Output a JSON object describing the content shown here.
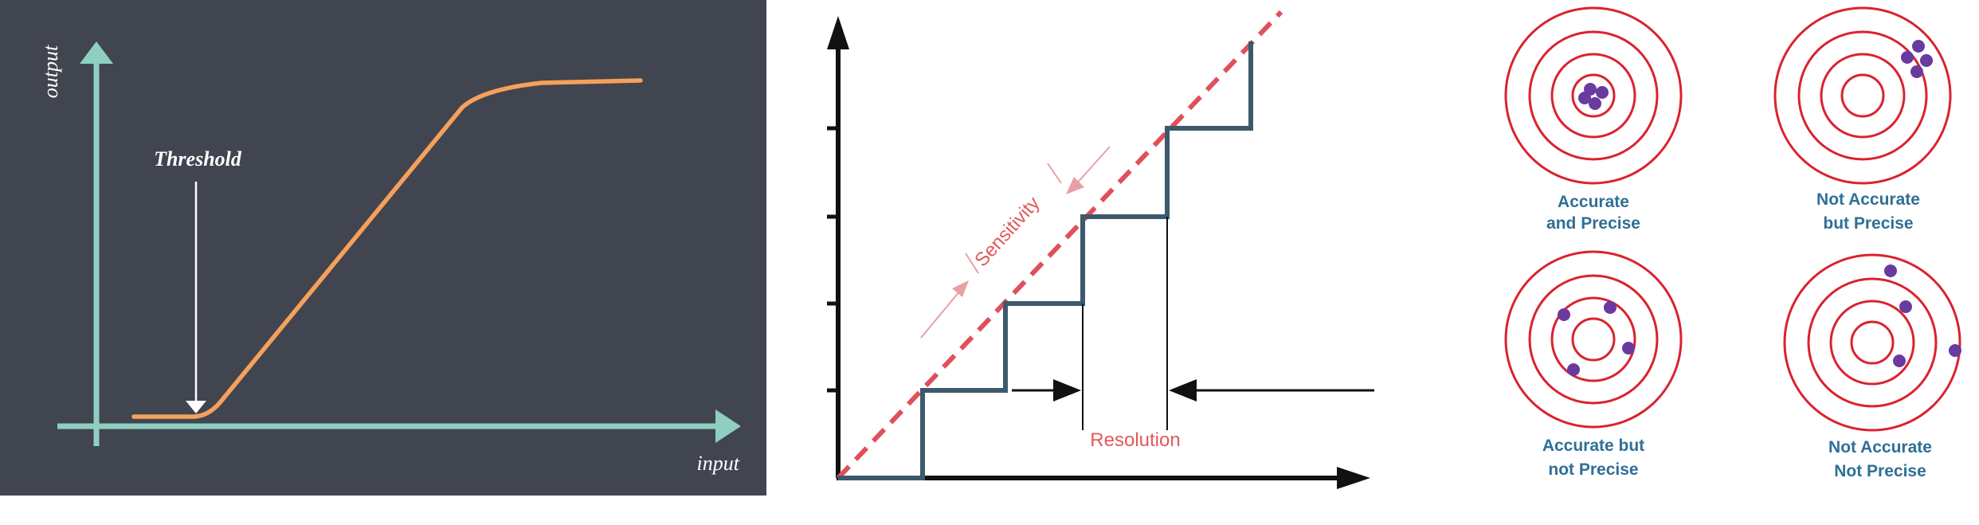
{
  "threshold_panel": {
    "y_axis_label": "output",
    "x_axis_label": "input",
    "threshold_label": "Threshold",
    "colors": {
      "background": "#414550",
      "axis": "#8fcfc0",
      "curve": "#f7a05a",
      "text": "#ffffff"
    }
  },
  "sensitivity_panel": {
    "sensitivity_label": "Sensitivity",
    "resolution_label": "Resolution",
    "colors": {
      "axis": "#111111",
      "staircase": "#3d5a6c",
      "dashed": "#e0505a",
      "label": "#e05a5a"
    }
  },
  "targets_panel": {
    "targets": [
      {
        "line1": "Accurate",
        "line2": "and Precise"
      },
      {
        "line1": "Not Accurate",
        "line2": "but Precise"
      },
      {
        "line1": "Accurate but",
        "line2": "not Precise"
      },
      {
        "line1": "Not Accurate",
        "line2": "Not Precise"
      }
    ],
    "colors": {
      "ring": "#d9232e",
      "dot": "#6a3aa0",
      "caption": "#2f6f96"
    }
  }
}
